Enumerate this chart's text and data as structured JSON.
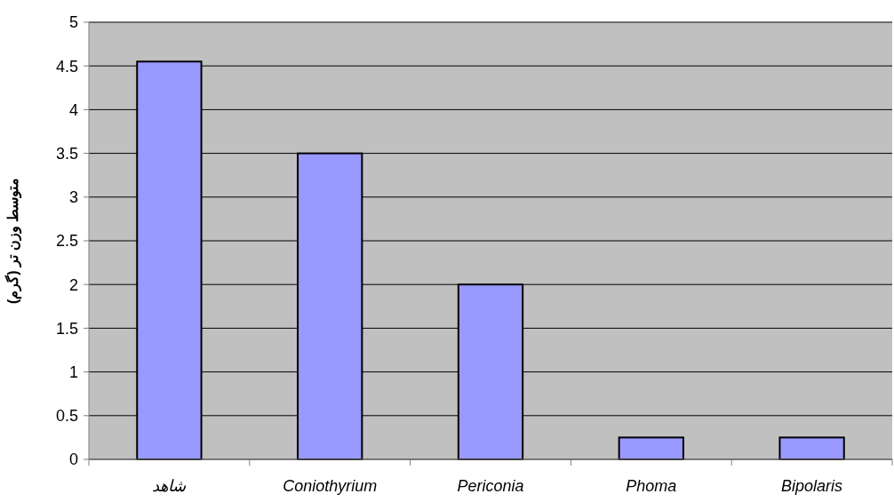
{
  "chart_data": {
    "type": "bar",
    "ylabel": "متوسط وزن تر (گرم)",
    "categories": [
      "شاهد",
      "Coniothyrium",
      "Periconia",
      "Phoma",
      "Bipolaris"
    ],
    "values": [
      4.55,
      3.5,
      2.0,
      0.25,
      0.25
    ],
    "color": "#9999ff",
    "ylim": [
      0,
      5
    ],
    "yticks": [
      0,
      0.5,
      1,
      1.5,
      2,
      2.5,
      3,
      3.5,
      4,
      4.5,
      5
    ],
    "grid": "y"
  }
}
